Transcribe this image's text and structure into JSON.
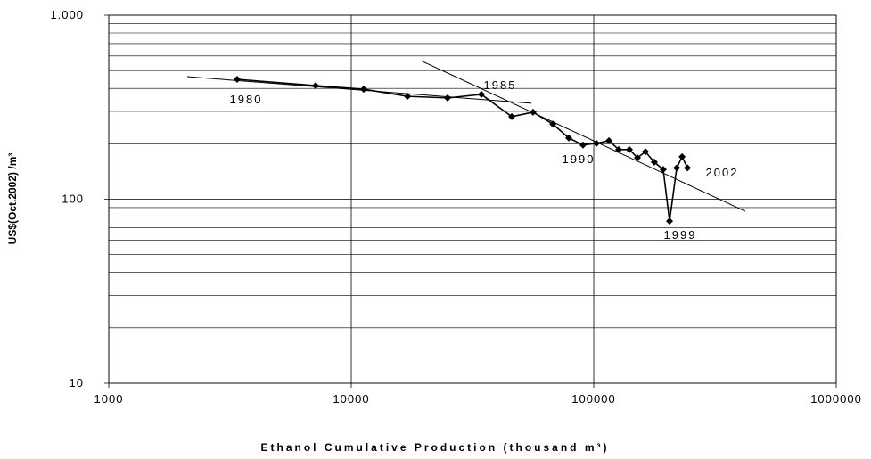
{
  "chart_data": {
    "type": "line",
    "x_label": "Ethanol Cumulative Production (thousand m³)",
    "y_label": "US$(Oct.2002) /m³",
    "xlog": true,
    "ylog": true,
    "xlim": [
      1000,
      1000000
    ],
    "ylim": [
      10,
      1000
    ],
    "xticks": [
      1000,
      10000,
      100000,
      1000000
    ],
    "yticks": [
      10,
      100,
      {
        "value": 1000,
        "label": "1.000"
      }
    ],
    "minor_yticks": [
      20,
      30,
      40,
      50,
      60,
      70,
      80,
      90,
      200,
      300,
      400,
      500,
      600,
      700,
      800,
      900
    ],
    "grid": true,
    "series": [
      {
        "color": "#000000",
        "x": [
          3383,
          7130,
          11250,
          17060,
          24950,
          34400,
          45900,
          56200,
          67800,
          78900,
          90300,
          102600,
          115500,
          126800,
          140300,
          151400,
          163400,
          177700,
          193400,
          205400,
          219900,
          231400,
          243400
        ],
        "values": [
          448,
          414,
          396,
          362,
          355,
          371,
          281,
          297,
          256,
          215,
          197,
          201,
          208,
          186,
          186,
          168,
          181,
          159,
          145,
          76,
          148,
          170,
          148
        ]
      }
    ],
    "trend_lines": [
      {
        "x": [
          2106,
          55300
        ],
        "values": [
          463,
          332
        ]
      },
      {
        "x": [
          19370,
          421700
        ],
        "values": [
          566,
          86
        ]
      }
    ],
    "annotations": [
      "1980",
      "1985",
      "1990",
      "1999",
      "2002"
    ]
  }
}
